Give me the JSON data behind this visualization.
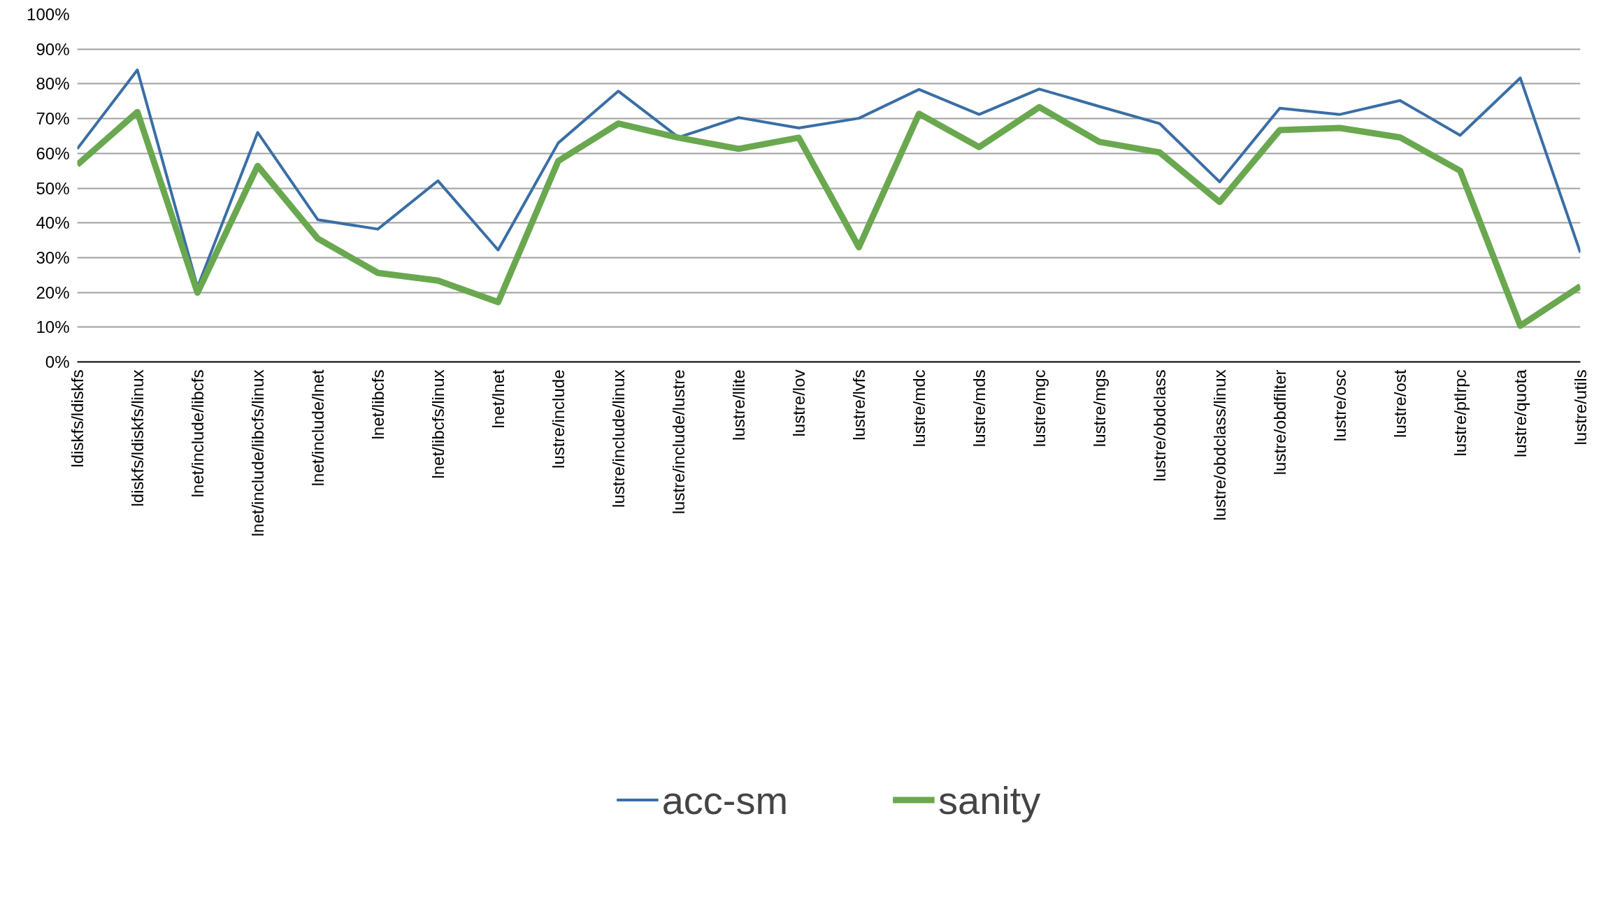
{
  "chart_data": {
    "type": "line",
    "categories": [
      "ldiskfs/ldiskfs",
      "ldiskfs/ldiskfs/linux",
      "lnet/include/libcfs",
      "lnet/include/libcfs/linux",
      "lnet/include/lnet",
      "lnet/libcfs",
      "lnet/libcfs/linux",
      "lnet/lnet",
      "lustre/include",
      "lustre/include/linux",
      "lustre/include/lustre",
      "lustre/llite",
      "lustre/lov",
      "lustre/lvfs",
      "lustre/mdc",
      "lustre/mds",
      "lustre/mgc",
      "lustre/mgs",
      "lustre/obdclass",
      "lustre/obdclass/linux",
      "lustre/obdfilter",
      "lustre/osc",
      "lustre/ost",
      "lustre/ptlrpc",
      "lustre/quota",
      "lustre/utils"
    ],
    "series": [
      {
        "name": "acc-sm",
        "color": "#3a6ea5",
        "values": [
          61.3,
          84.0,
          21.5,
          66.0,
          40.9,
          38.2,
          52.1,
          32.2,
          63.0,
          77.9,
          64.6,
          70.3,
          67.3,
          70.1,
          78.4,
          71.2,
          78.5,
          73.5,
          68.6,
          51.8,
          73.0,
          71.2,
          75.2,
          65.2,
          81.7,
          31.4
        ]
      },
      {
        "name": "sanity",
        "color": "#6aa84f",
        "values": [
          56.7,
          71.9,
          19.9,
          56.4,
          35.5,
          25.6,
          23.4,
          17.2,
          57.8,
          68.6,
          64.5,
          61.3,
          64.5,
          33.0,
          71.4,
          61.8,
          73.3,
          63.3,
          60.3,
          46.0,
          66.7,
          67.3,
          64.6,
          55.0,
          10.4,
          21.8
        ]
      }
    ],
    "ylim": [
      0,
      100
    ],
    "yticks": [
      {
        "value": 0,
        "label": "0%"
      },
      {
        "value": 10,
        "label": "10%"
      },
      {
        "value": 20,
        "label": "20%"
      },
      {
        "value": 30,
        "label": "30%"
      },
      {
        "value": 40,
        "label": "40%"
      },
      {
        "value": 50,
        "label": "50%"
      },
      {
        "value": 60,
        "label": "60%"
      },
      {
        "value": 70,
        "label": "70%"
      },
      {
        "value": 80,
        "label": "80%"
      },
      {
        "value": 90,
        "label": "90%"
      },
      {
        "value": 100,
        "label": "100%"
      }
    ],
    "grid": "y",
    "legend": "bottom",
    "marker": "none",
    "line_style": "solid"
  }
}
